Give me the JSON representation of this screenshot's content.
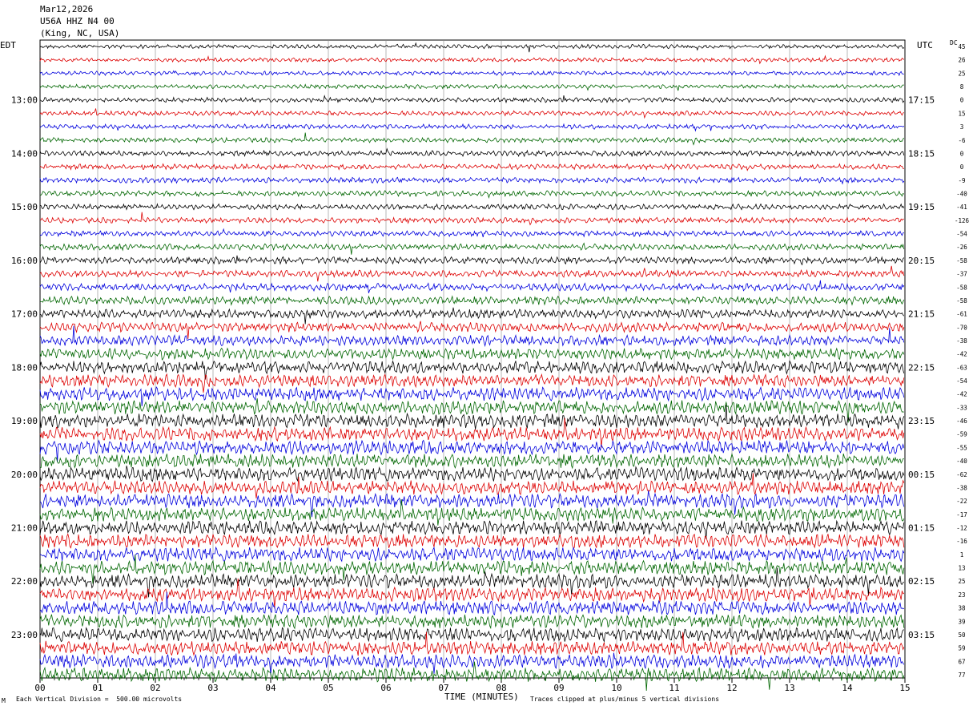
{
  "header": {
    "date": "Mar12,2026",
    "station": "U56A HHZ N4 00",
    "location": "(King, NC, USA)"
  },
  "left_tz": "EDT",
  "right_tz": "UTC",
  "dc_label": "DC",
  "footer": {
    "scale_note": "Each Vertical Division =  500.00 microvolts",
    "clip_note": "Traces clipped at plus/minus 5 vertical divisions",
    "corner_mark": "M"
  },
  "colors": {
    "trace_cycle": [
      "#000000",
      "#dd0000",
      "#0000dd",
      "#006600"
    ],
    "grid": "#888888"
  },
  "chart_data": {
    "type": "line",
    "title": "",
    "xlabel": "TIME (MINUTES)",
    "x_ticks": [
      "00",
      "01",
      "02",
      "03",
      "04",
      "05",
      "06",
      "07",
      "08",
      "09",
      "10",
      "11",
      "12",
      "13",
      "14",
      "15"
    ],
    "xlim": [
      0,
      15
    ],
    "left_time_labels": [
      "13:00",
      "14:00",
      "15:00",
      "16:00",
      "17:00",
      "18:00",
      "19:00",
      "20:00",
      "21:00",
      "22:00",
      "23:00"
    ],
    "right_time_labels": [
      "17:15",
      "18:15",
      "19:15",
      "20:15",
      "21:15",
      "22:15",
      "23:15",
      "00:15",
      "01:15",
      "02:15",
      "03:15"
    ],
    "dc_offsets": [
      45,
      26,
      25,
      8,
      0,
      15,
      3,
      -6,
      0,
      0,
      -9,
      -40,
      -41,
      -126,
      -54,
      -26,
      -58,
      -37,
      -58,
      -58,
      -61,
      -70,
      -38,
      -42,
      -63,
      -54,
      -42,
      -33,
      -46,
      -59,
      -55,
      -40,
      -62,
      -38,
      -22,
      -17,
      -12,
      -16,
      1,
      13,
      25,
      23,
      38,
      39,
      50,
      59,
      67,
      77
    ],
    "trace_amplitude_level": [
      0.3,
      0.3,
      0.3,
      0.3,
      0.35,
      0.35,
      0.35,
      0.35,
      0.4,
      0.4,
      0.4,
      0.4,
      0.4,
      0.4,
      0.4,
      0.45,
      0.5,
      0.5,
      0.55,
      0.6,
      0.65,
      0.7,
      0.75,
      0.8,
      0.9,
      0.9,
      0.95,
      1.0,
      1.0,
      1.0,
      1.0,
      1.0,
      1.0,
      1.0,
      1.0,
      1.0,
      1.0,
      1.0,
      1.0,
      1.0,
      1.0,
      1.0,
      1.0,
      1.0,
      1.0,
      1.0,
      1.0,
      1.0
    ]
  }
}
